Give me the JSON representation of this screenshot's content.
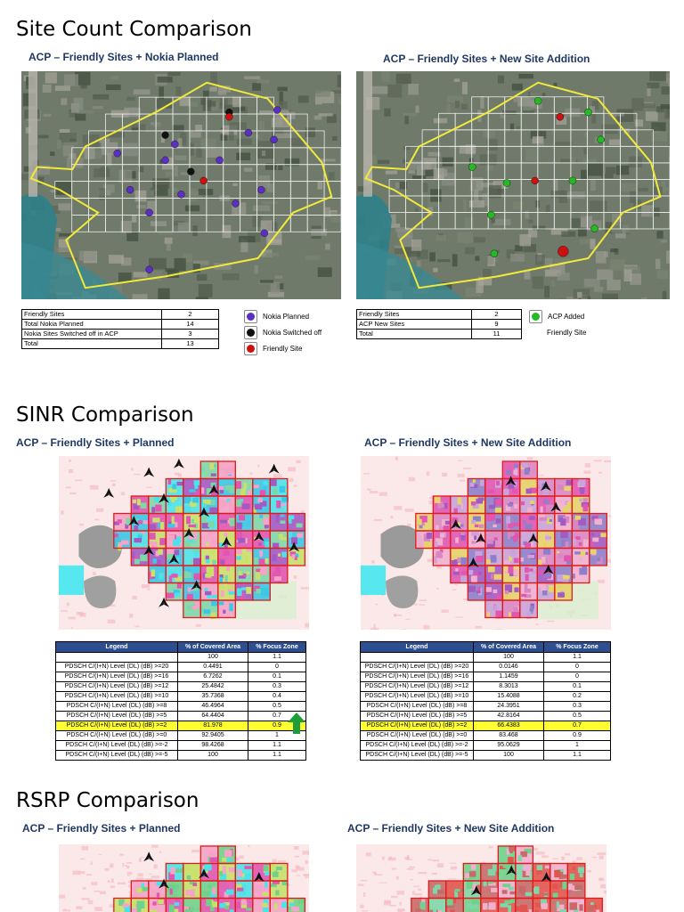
{
  "site_section": {
    "title": "Site Count Comparison",
    "left": {
      "subtitle": "ACP – Friendly Sites + Nokia Planned",
      "rows": [
        {
          "label": "Friendly Sites",
          "value": "2"
        },
        {
          "label": "Total Nokia Planned",
          "value": "14"
        },
        {
          "label": "Nokia Sites Switched off in ACP",
          "value": "3"
        },
        {
          "label": "Total",
          "value": "13"
        }
      ],
      "legend": [
        {
          "label": "Nokia Planned",
          "color": "#5b2fc4"
        },
        {
          "label": "Nokia Switched off",
          "color": "#111111"
        },
        {
          "label": "Friendly Site",
          "color": "#cc1111"
        }
      ]
    },
    "right": {
      "subtitle": "ACP – Friendly Sites + New Site Addition",
      "rows": [
        {
          "label": "Friendly Sites",
          "value": "2"
        },
        {
          "label": "ACP New Sites",
          "value": "9"
        },
        {
          "label": "Total",
          "value": "11"
        }
      ],
      "legend": [
        {
          "label": "ACP Added",
          "color": "#22bb22"
        },
        {
          "label": "Friendly Site",
          "color": ""
        }
      ]
    }
  },
  "sinr_section": {
    "title": "SINR Comparison",
    "left_subtitle": "ACP – Friendly Sites + Planned",
    "right_subtitle": "ACP – Friendly Sites + New Site Addition",
    "table_headers": [
      "Legend",
      "% of Covered Area",
      "% Focus Zone"
    ],
    "left_table": [
      {
        "legend": "",
        "area": "100",
        "focus": "1.1",
        "hl": false
      },
      {
        "legend": "PDSCH C/(I+N) Level (DL) (dB) >=20",
        "area": "0.4491",
        "focus": "0",
        "hl": false
      },
      {
        "legend": "PDSCH C/(I+N) Level (DL) (dB) >=16",
        "area": "6.7262",
        "focus": "0.1",
        "hl": false
      },
      {
        "legend": "PDSCH C/(I+N) Level (DL) (dB) >=12",
        "area": "25.4842",
        "focus": "0.3",
        "hl": false
      },
      {
        "legend": "PDSCH C/(I+N) Level (DL) (dB) >=10",
        "area": "35.7368",
        "focus": "0.4",
        "hl": false
      },
      {
        "legend": "PDSCH C/(I+N) Level (DL) (dB) >=8",
        "area": "46.4964",
        "focus": "0.5",
        "hl": false
      },
      {
        "legend": "PDSCH C/(I+N) Level (DL) (dB) >=5",
        "area": "64.4404",
        "focus": "0.7",
        "hl": false
      },
      {
        "legend": "PDSCH C/(I+N) Level (DL) (dB) >=2",
        "area": "81.978",
        "focus": "0.9",
        "hl": true
      },
      {
        "legend": "PDSCH C/(I+N) Level (DL) (dB) >=0",
        "area": "92.9405",
        "focus": "1",
        "hl": false
      },
      {
        "legend": "PDSCH C/(I+N) Level (DL) (dB) >=-2",
        "area": "98.4268",
        "focus": "1.1",
        "hl": false
      },
      {
        "legend": "PDSCH C/(I+N) Level (DL) (dB) >=-5",
        "area": "100",
        "focus": "1.1",
        "hl": false
      }
    ],
    "right_table": [
      {
        "legend": "",
        "area": "100",
        "focus": "1.1",
        "hl": false
      },
      {
        "legend": "PDSCH C/(I+N) Level (DL) (dB) >=20",
        "area": "0.0146",
        "focus": "0",
        "hl": false
      },
      {
        "legend": "PDSCH C/(I+N) Level (DL) (dB) >=16",
        "area": "1.1459",
        "focus": "0",
        "hl": false
      },
      {
        "legend": "PDSCH C/(I+N) Level (DL) (dB) >=12",
        "area": "8.3013",
        "focus": "0.1",
        "hl": false
      },
      {
        "legend": "PDSCH C/(I+N) Level (DL) (dB) >=10",
        "area": "15.4088",
        "focus": "0.2",
        "hl": false
      },
      {
        "legend": "PDSCH C/(I+N) Level (DL) (dB) >=8",
        "area": "24.3951",
        "focus": "0.3",
        "hl": false
      },
      {
        "legend": "PDSCH C/(I+N) Level (DL) (dB) >=5",
        "area": "42.8164",
        "focus": "0.5",
        "hl": false
      },
      {
        "legend": "PDSCH C/(I+N) Level (DL) (dB) >=2",
        "area": "66.4383",
        "focus": "0.7",
        "hl": true
      },
      {
        "legend": "PDSCH C/(I+N) Level (DL) (dB) >=0",
        "area": "83.468",
        "focus": "0.9",
        "hl": false
      },
      {
        "legend": "PDSCH C/(I+N) Level (DL) (dB) >=-2",
        "area": "95.0629",
        "focus": "1",
        "hl": false
      },
      {
        "legend": "PDSCH C/(I+N) Level (DL) (dB) >=-5",
        "area": "100",
        "focus": "1.1",
        "hl": false
      }
    ]
  },
  "rsrp_section": {
    "title": "RSRP Comparison",
    "left_subtitle": "ACP – Friendly Sites + Planned",
    "right_subtitle": "ACP – Friendly Sites + New Site Addition"
  }
}
